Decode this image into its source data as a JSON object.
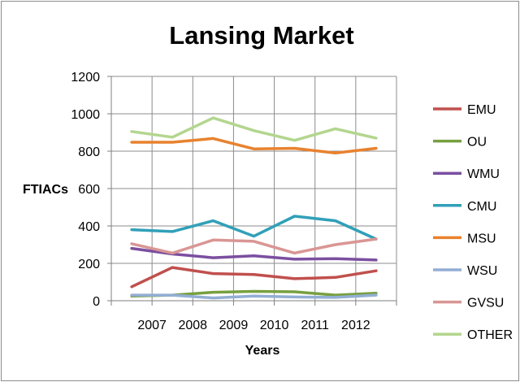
{
  "chart_data": {
    "type": "line",
    "title": "Lansing Market",
    "xlabel": "Years",
    "ylabel": "FTIACs",
    "ylim": [
      0,
      1200
    ],
    "yticks": [
      "0",
      "200",
      "400",
      "600",
      "800",
      "1000",
      "1200"
    ],
    "categories": [
      "2007",
      "2008",
      "2009",
      "2010",
      "2011",
      "2012",
      ""
    ],
    "grid": true,
    "legend_position": "right",
    "series": [
      {
        "name": "EMU",
        "color": "#c0504d",
        "values": [
          75,
          178,
          145,
          140,
          118,
          125,
          160
        ]
      },
      {
        "name": "OU",
        "color": "#77a040",
        "values": [
          25,
          30,
          45,
          50,
          48,
          30,
          40
        ]
      },
      {
        "name": "WMU",
        "color": "#7b4fa0",
        "values": [
          280,
          250,
          230,
          240,
          222,
          225,
          218
        ]
      },
      {
        "name": "CMU",
        "color": "#31a0b8",
        "values": [
          380,
          370,
          428,
          345,
          452,
          428,
          330
        ]
      },
      {
        "name": "MSU",
        "color": "#e8822f",
        "values": [
          848,
          848,
          868,
          812,
          815,
          790,
          815
        ]
      },
      {
        "name": "WSU",
        "color": "#92aed4",
        "values": [
          30,
          30,
          15,
          25,
          20,
          18,
          30
        ]
      },
      {
        "name": "GVSU",
        "color": "#d99694",
        "values": [
          305,
          255,
          325,
          318,
          255,
          300,
          330
        ]
      },
      {
        "name": "OTHER",
        "color": "#b3d68e",
        "values": [
          905,
          875,
          978,
          910,
          858,
          920,
          870
        ]
      }
    ]
  }
}
